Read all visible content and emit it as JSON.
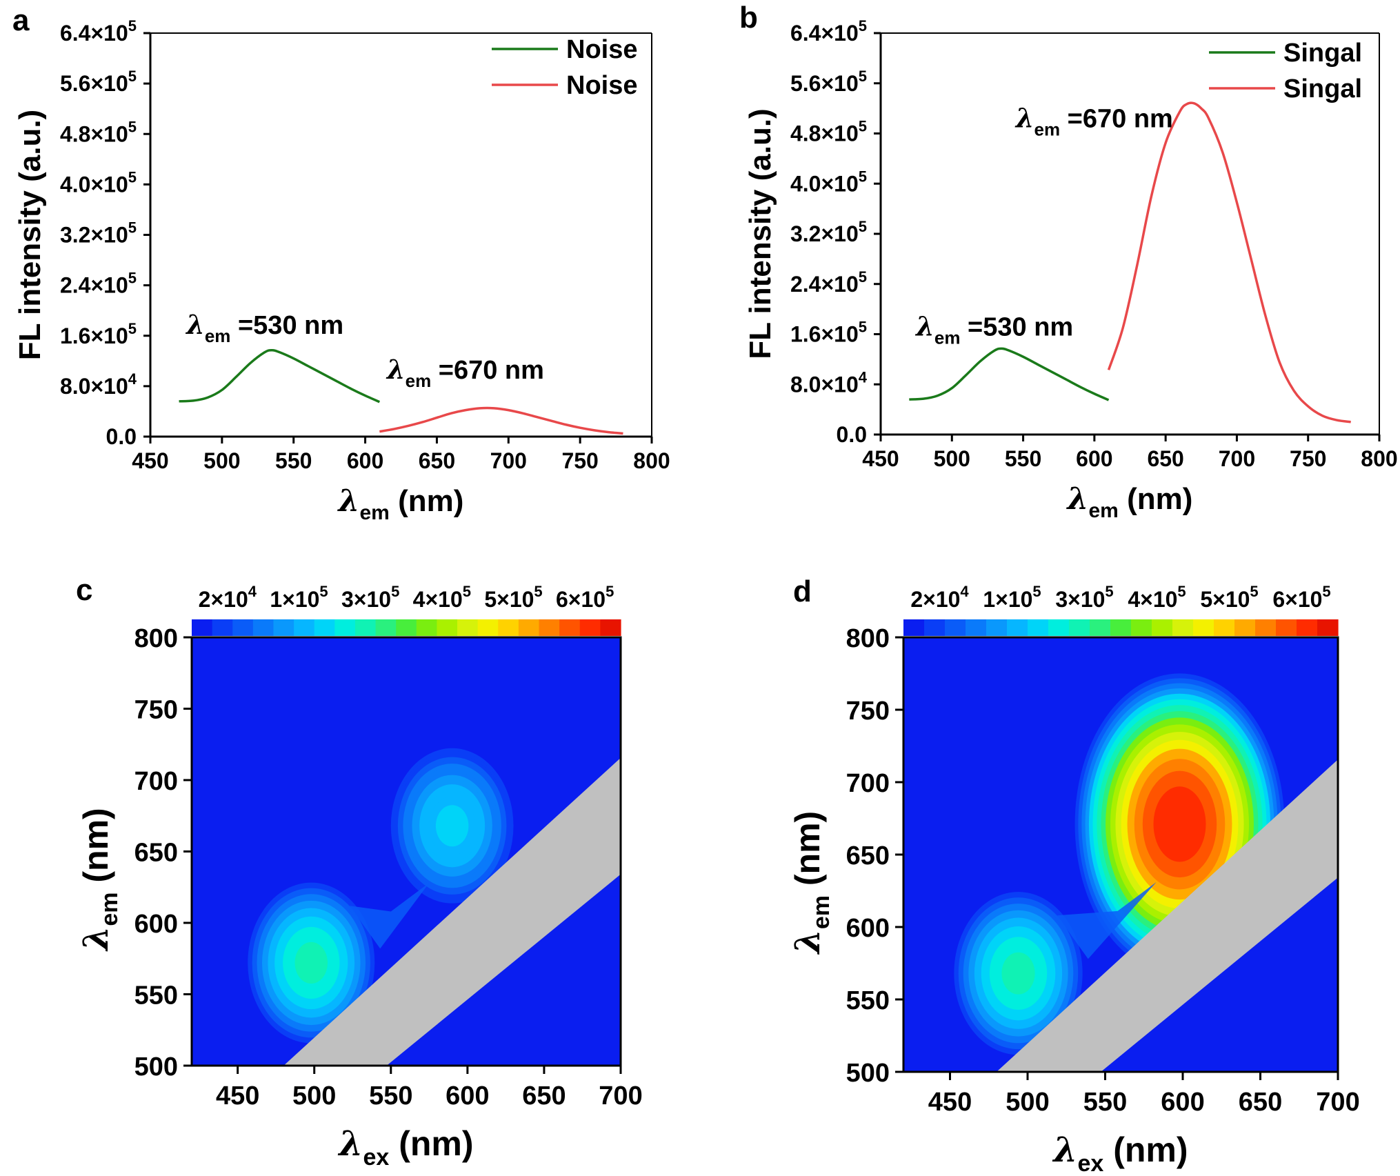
{
  "figure": {
    "panels": {
      "a": "a",
      "b": "b",
      "c": "c",
      "d": "d"
    },
    "colors": {
      "green": "#1a7a1a",
      "red": "#e8484a",
      "gray": "#c0c0c0",
      "background_blue": "#0a1ef0"
    }
  },
  "chart_data": [
    {
      "id": "a",
      "type": "line",
      "x_ticks": [
        "450",
        "500",
        "550",
        "600",
        "650",
        "700",
        "750",
        "800"
      ],
      "y_ticks": [
        {
          "m": "0.0",
          "e": ""
        },
        {
          "m": "8.0×10",
          "e": "4"
        },
        {
          "m": "1.6×10",
          "e": "5"
        },
        {
          "m": "2.4×10",
          "e": "5"
        },
        {
          "m": "3.2×10",
          "e": "5"
        },
        {
          "m": "4.0×10",
          "e": "5"
        },
        {
          "m": "4.8×10",
          "e": "5"
        },
        {
          "m": "5.6×10",
          "e": "5"
        },
        {
          "m": "6.4×10",
          "e": "5"
        }
      ],
      "xlim": [
        450,
        800
      ],
      "ylim": [
        0,
        640000
      ],
      "ylabel": "FL intensity (a.u.)",
      "xlabel": {
        "symbol": "λ",
        "sub": "em",
        "unit": "(nm)"
      },
      "legend_position": "top-right",
      "series": [
        {
          "name": "Noise",
          "color": "#1a7a1a",
          "x": [
            470,
            480,
            490,
            500,
            510,
            520,
            530,
            535,
            540,
            550,
            560,
            570,
            580,
            590,
            600,
            610
          ],
          "y": [
            56000,
            57000,
            62000,
            74000,
            95000,
            117000,
            134000,
            137000,
            134000,
            124000,
            112000,
            100000,
            88000,
            76000,
            65000,
            55000
          ]
        },
        {
          "name": "Noise",
          "color": "#e8484a",
          "x": [
            610,
            620,
            630,
            640,
            650,
            660,
            670,
            680,
            690,
            700,
            710,
            720,
            730,
            740,
            750,
            760,
            770,
            780
          ],
          "y": [
            8000,
            12000,
            17000,
            23000,
            30000,
            37000,
            42000,
            45000,
            45000,
            42000,
            37000,
            31000,
            25000,
            19000,
            14000,
            10000,
            7000,
            5000
          ]
        }
      ],
      "annotations": [
        {
          "symbol": "λ",
          "sub": "em",
          "text": " =530 nm",
          "x": 530,
          "y": 163000
        },
        {
          "symbol": "λ",
          "sub": "em",
          "text": " =670 nm",
          "x": 670,
          "y": 92000
        }
      ]
    },
    {
      "id": "b",
      "type": "line",
      "x_ticks": [
        "450",
        "500",
        "550",
        "600",
        "650",
        "700",
        "750",
        "800"
      ],
      "y_ticks": [
        {
          "m": "0.0",
          "e": ""
        },
        {
          "m": "8.0×10",
          "e": "4"
        },
        {
          "m": "1.6×10",
          "e": "5"
        },
        {
          "m": "2.4×10",
          "e": "5"
        },
        {
          "m": "3.2×10",
          "e": "5"
        },
        {
          "m": "4.0×10",
          "e": "5"
        },
        {
          "m": "4.8×10",
          "e": "5"
        },
        {
          "m": "5.6×10",
          "e": "5"
        },
        {
          "m": "6.4×10",
          "e": "5"
        }
      ],
      "xlim": [
        450,
        800
      ],
      "ylim": [
        0,
        640000
      ],
      "ylabel": "FL intensity (a.u.)",
      "xlabel": {
        "symbol": "λ",
        "sub": "em",
        "unit": "(nm)"
      },
      "legend_position": "top-right",
      "series": [
        {
          "name": "Singal",
          "color": "#1a7a1a",
          "x": [
            470,
            480,
            490,
            500,
            510,
            520,
            530,
            535,
            540,
            550,
            560,
            570,
            580,
            590,
            600,
            610
          ],
          "y": [
            56000,
            57000,
            62000,
            74000,
            95000,
            117000,
            134000,
            137000,
            134000,
            124000,
            112000,
            100000,
            88000,
            76000,
            65000,
            55000
          ]
        },
        {
          "name": "Singal",
          "color": "#e8484a",
          "x": [
            610,
            620,
            630,
            640,
            650,
            660,
            665,
            670,
            675,
            680,
            690,
            700,
            710,
            720,
            730,
            740,
            750,
            760,
            770,
            780
          ],
          "y": [
            103000,
            170000,
            270000,
            380000,
            465000,
            515000,
            527000,
            528000,
            520000,
            505000,
            450000,
            370000,
            280000,
            190000,
            115000,
            70000,
            45000,
            30000,
            23000,
            20000
          ]
        }
      ],
      "annotations": [
        {
          "symbol": "λ",
          "sub": "em",
          "text": " =530 nm",
          "x": 530,
          "y": 158000
        },
        {
          "symbol": "λ",
          "sub": "em",
          "text": " =670 nm",
          "x": 600,
          "y": 490000
        }
      ]
    },
    {
      "id": "c",
      "type": "heatmap",
      "x_ticks": [
        "450",
        "500",
        "550",
        "600",
        "650",
        "700"
      ],
      "y_ticks": [
        "500",
        "550",
        "600",
        "650",
        "700",
        "750",
        "800"
      ],
      "xlim": [
        420,
        700
      ],
      "ylim": [
        500,
        800
      ],
      "xlabel": {
        "symbol": "λ",
        "sub": "ex",
        "unit": "(nm)"
      },
      "ylabel": {
        "symbol": "λ",
        "sub": "em",
        "unit": "(nm)"
      },
      "colorbar_ticks": [
        {
          "m": "2×10",
          "e": "4",
          "v": 20000
        },
        {
          "m": "1×10",
          "e": "5",
          "v": 100000
        },
        {
          "m": "3×10",
          "e": "5",
          "v": 300000
        },
        {
          "m": "4×10",
          "e": "5",
          "v": 400000
        },
        {
          "m": "5×10",
          "e": "5",
          "v": 500000
        },
        {
          "m": "6×10",
          "e": "5",
          "v": 600000
        }
      ],
      "peaks": [
        {
          "ex": 498,
          "em": 572,
          "intensity": 240000
        },
        {
          "ex": 590,
          "em": 668,
          "intensity": 185000
        }
      ],
      "scatter_band": "gray diagonal band (Rayleigh scattering region)"
    },
    {
      "id": "d",
      "type": "heatmap",
      "x_ticks": [
        "450",
        "500",
        "550",
        "600",
        "650",
        "700"
      ],
      "y_ticks": [
        "500",
        "550",
        "600",
        "650",
        "700",
        "750",
        "800"
      ],
      "xlim": [
        420,
        700
      ],
      "ylim": [
        500,
        800
      ],
      "xlabel": {
        "symbol": "λ",
        "sub": "ex",
        "unit": "(nm)"
      },
      "ylabel": {
        "symbol": "λ",
        "sub": "em",
        "unit": "(nm)"
      },
      "colorbar_ticks": [
        {
          "m": "2×10",
          "e": "4",
          "v": 20000
        },
        {
          "m": "1×10",
          "e": "5",
          "v": 100000
        },
        {
          "m": "3×10",
          "e": "5",
          "v": 300000
        },
        {
          "m": "4×10",
          "e": "5",
          "v": 400000
        },
        {
          "m": "5×10",
          "e": "5",
          "v": 500000
        },
        {
          "m": "6×10",
          "e": "5",
          "v": 600000
        }
      ],
      "peaks": [
        {
          "ex": 494,
          "em": 568,
          "intensity": 240000
        },
        {
          "ex": 598,
          "em": 671,
          "intensity": 590000
        }
      ],
      "scatter_band": "gray diagonal band (Rayleigh scattering region)"
    }
  ]
}
